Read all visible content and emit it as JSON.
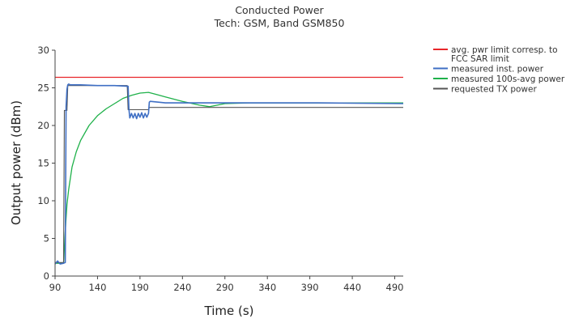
{
  "chart_data": {
    "type": "line",
    "title": "Conducted Power",
    "subtitle": "Tech: GSM, Band GSM850",
    "xlabel": "Time (s)",
    "ylabel": "Output power (dBm)",
    "xlim": [
      90,
      500
    ],
    "ylim": [
      0,
      30
    ],
    "x_ticks": [
      "90",
      "140",
      "190",
      "240",
      "290",
      "340",
      "390",
      "440",
      "490"
    ],
    "y_ticks": [
      "0",
      "5",
      "10",
      "15",
      "20",
      "25",
      "30"
    ],
    "grid": false,
    "legend_position": "top-right",
    "colors": {
      "limit": "#e8262a",
      "inst": "#3f6fc4",
      "avg": "#1fb14a",
      "requested": "#555555"
    },
    "series": [
      {
        "key": "limit",
        "name": "avg. pwr limit corresp. to FCC SAR limit",
        "name_lines": [
          "avg. pwr limit corresp. to",
          "FCC SAR limit"
        ],
        "x": [
          90,
          500
        ],
        "y": [
          26.4,
          26.4
        ]
      },
      {
        "key": "inst",
        "name": "measured inst. power",
        "name_lines": [
          "measured inst. power"
        ],
        "x": [
          90,
          93,
          96,
          100,
          102,
          103,
          104,
          105,
          106,
          108,
          120,
          140,
          160,
          176,
          177,
          178,
          180,
          182,
          184,
          186,
          188,
          190,
          192,
          194,
          196,
          198,
          200,
          201,
          202,
          220,
          260,
          300,
          400,
          500
        ],
        "y": [
          1.6,
          2.0,
          1.6,
          1.7,
          1.8,
          22.5,
          24.8,
          25.4,
          25.5,
          25.4,
          25.4,
          25.3,
          25.3,
          25.2,
          22.2,
          21.0,
          21.6,
          21.0,
          21.6,
          20.9,
          21.6,
          21.1,
          21.7,
          21.0,
          21.6,
          21.1,
          21.6,
          23.1,
          23.2,
          23.0,
          23.0,
          23.0,
          23.0,
          22.9
        ]
      },
      {
        "key": "avg",
        "name": "measured 100s-avg power",
        "name_lines": [
          "measured 100s-avg power"
        ],
        "x": [
          90,
          100,
          102,
          104,
          106,
          110,
          115,
          120,
          130,
          140,
          150,
          160,
          170,
          180,
          190,
          200,
          210,
          220,
          240,
          260,
          272,
          290,
          320,
          360,
          400,
          450,
          500
        ],
        "y": [
          1.7,
          1.7,
          6.0,
          9.5,
          11.5,
          14.5,
          16.5,
          18.0,
          20.0,
          21.3,
          22.2,
          22.9,
          23.6,
          24.0,
          24.3,
          24.4,
          24.1,
          23.8,
          23.2,
          22.7,
          22.5,
          22.9,
          23.0,
          23.0,
          23.0,
          23.0,
          23.0
        ]
      },
      {
        "key": "requested",
        "name": "requested TX power",
        "name_lines": [
          "requested TX power"
        ],
        "x": [
          90,
          100,
          101,
          104,
          105,
          175,
          176,
          200,
          201,
          500
        ],
        "y": [
          1.8,
          1.8,
          22.0,
          22.0,
          25.3,
          25.3,
          22.1,
          22.1,
          22.4,
          22.4
        ]
      }
    ]
  }
}
